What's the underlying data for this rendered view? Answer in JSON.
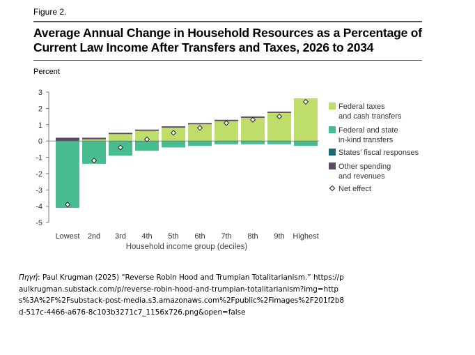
{
  "figure_label": "Figure 2.",
  "caption": {
    "source_word": "Πηγή",
    "text": ": Paul Krugman (2025) “Reverse Robin Hood and Trumpian Totalitarianism.”",
    "url": "https://paulkrugman.substack.com/p/reverse-robin-hood-and-trumpian-totalitarianism?img=https%3A%2F%2Fsubstack-post-media.s3.amazonaws.com%2Fpublic%2Fimages%2F201f2b8d-517c-4466-a676-8c103b3271c7_1156x726.png&open=false"
  },
  "chart_data": {
    "type": "bar",
    "stacked": true,
    "title": "Average Annual Change in Household Resources as a Percentage of Current Law Income After Transfers and Taxes, 2026 to 2034",
    "ylabel": "Percent",
    "xlabel": "Household income group (deciles)",
    "ylim": [
      -5,
      3
    ],
    "yticks": [
      3,
      2,
      1,
      0,
      -1,
      -2,
      -3,
      -4,
      -5
    ],
    "grid": false,
    "legend_position": "right",
    "categories": [
      "Lowest",
      "2nd",
      "3rd",
      "4th",
      "5th",
      "6th",
      "7th",
      "8th",
      "9th",
      "Highest"
    ],
    "series": [
      {
        "name": "Federal taxes and cash transfers",
        "label_lines": [
          "Federal taxes",
          "and cash transfers"
        ],
        "color": "#bedd6a",
        "values": [
          0,
          0.1,
          0.42,
          0.62,
          0.82,
          1.02,
          1.22,
          1.42,
          1.72,
          2.62
        ]
      },
      {
        "name": "Federal and state in-kind transfers",
        "label_lines": [
          "Federal and state",
          "in-kind transfers"
        ],
        "color": "#48bd90",
        "values": [
          -4.1,
          -1.4,
          -0.9,
          -0.6,
          -0.4,
          -0.3,
          -0.2,
          -0.2,
          -0.2,
          -0.3
        ]
      },
      {
        "name": "States’ fiscal responses",
        "label_lines": [
          "States’ fiscal responses"
        ],
        "color": "#1b6a78",
        "values": [
          0,
          0,
          0,
          0,
          0,
          0,
          0,
          0,
          0,
          0
        ]
      },
      {
        "name": "Other spending and revenues",
        "label_lines": [
          "Other spending",
          "and revenues"
        ],
        "color": "#5e4a62",
        "values": [
          0.2,
          0.1,
          0.08,
          0.08,
          0.08,
          0.08,
          0.08,
          0.08,
          0.08,
          0
        ]
      }
    ],
    "net_effect": {
      "name": "Net effect",
      "label_lines": [
        "Net effect"
      ],
      "values": [
        -3.9,
        -1.2,
        -0.4,
        0.1,
        0.5,
        0.8,
        1.1,
        1.3,
        1.5,
        2.4
      ]
    }
  }
}
